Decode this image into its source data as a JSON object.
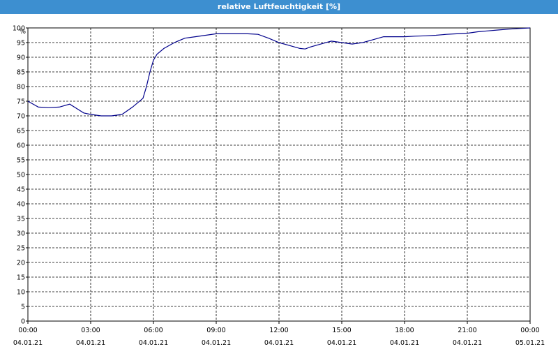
{
  "header": {
    "title": "relative Luftfeuchtigkeit [%]"
  },
  "chart_data": {
    "type": "line",
    "title": "relative Luftfeuchtigkeit [%]",
    "ylabel": "%",
    "xlabel": "",
    "ylim": [
      0,
      100
    ],
    "y_ticks": [
      0,
      5,
      10,
      15,
      20,
      25,
      30,
      35,
      40,
      45,
      50,
      55,
      60,
      65,
      70,
      75,
      80,
      85,
      90,
      95,
      100
    ],
    "x_range": [
      "04.01.21 00:00",
      "05.01.21 00:00"
    ],
    "x_ticks": [
      {
        "time": "00:00",
        "date": "04.01.21"
      },
      {
        "time": "03:00",
        "date": "04.01.21"
      },
      {
        "time": "06:00",
        "date": "04.01.21"
      },
      {
        "time": "09:00",
        "date": "04.01.21"
      },
      {
        "time": "12:00",
        "date": "04.01.21"
      },
      {
        "time": "15:00",
        "date": "04.01.21"
      },
      {
        "time": "18:00",
        "date": "04.01.21"
      },
      {
        "time": "21:00",
        "date": "04.01.21"
      },
      {
        "time": "00:00",
        "date": "05.01.21"
      }
    ],
    "grid": true,
    "line_color": "#00008b",
    "series": [
      {
        "x": [
          "00:00",
          "00:30",
          "01:00",
          "01:30",
          "02:00",
          "02:20",
          "02:40",
          "03:00",
          "03:30",
          "04:00",
          "04:30",
          "05:00",
          "05:30",
          "05:40",
          "05:50",
          "06:00",
          "06:10",
          "06:30",
          "07:00",
          "07:30",
          "08:00",
          "08:30",
          "09:00",
          "09:30",
          "10:00",
          "10:30",
          "11:00",
          "11:30",
          "12:00",
          "12:30",
          "13:00",
          "13:15",
          "13:30",
          "14:00",
          "14:30",
          "15:00",
          "15:30",
          "16:00",
          "16:30",
          "17:00",
          "17:30",
          "18:00",
          "18:30",
          "19:00",
          "19:30",
          "20:00",
          "20:30",
          "21:00",
          "21:30",
          "22:00",
          "22:30",
          "23:00",
          "23:30",
          "24:00"
        ],
        "values": [
          75,
          73,
          72.8,
          73,
          74,
          72.5,
          71,
          70.5,
          70,
          70,
          70.5,
          73,
          76,
          80,
          85,
          89,
          91,
          93,
          95,
          96.5,
          97,
          97.5,
          98,
          98,
          98,
          98,
          97.8,
          96.5,
          95,
          94,
          93,
          92.8,
          93.5,
          94.5,
          95.5,
          95,
          94.5,
          95,
          96,
          97,
          97,
          97,
          97.2,
          97.3,
          97.5,
          97.8,
          98,
          98.2,
          98.7,
          99,
          99.3,
          99.6,
          99.8,
          100
        ]
      }
    ]
  }
}
